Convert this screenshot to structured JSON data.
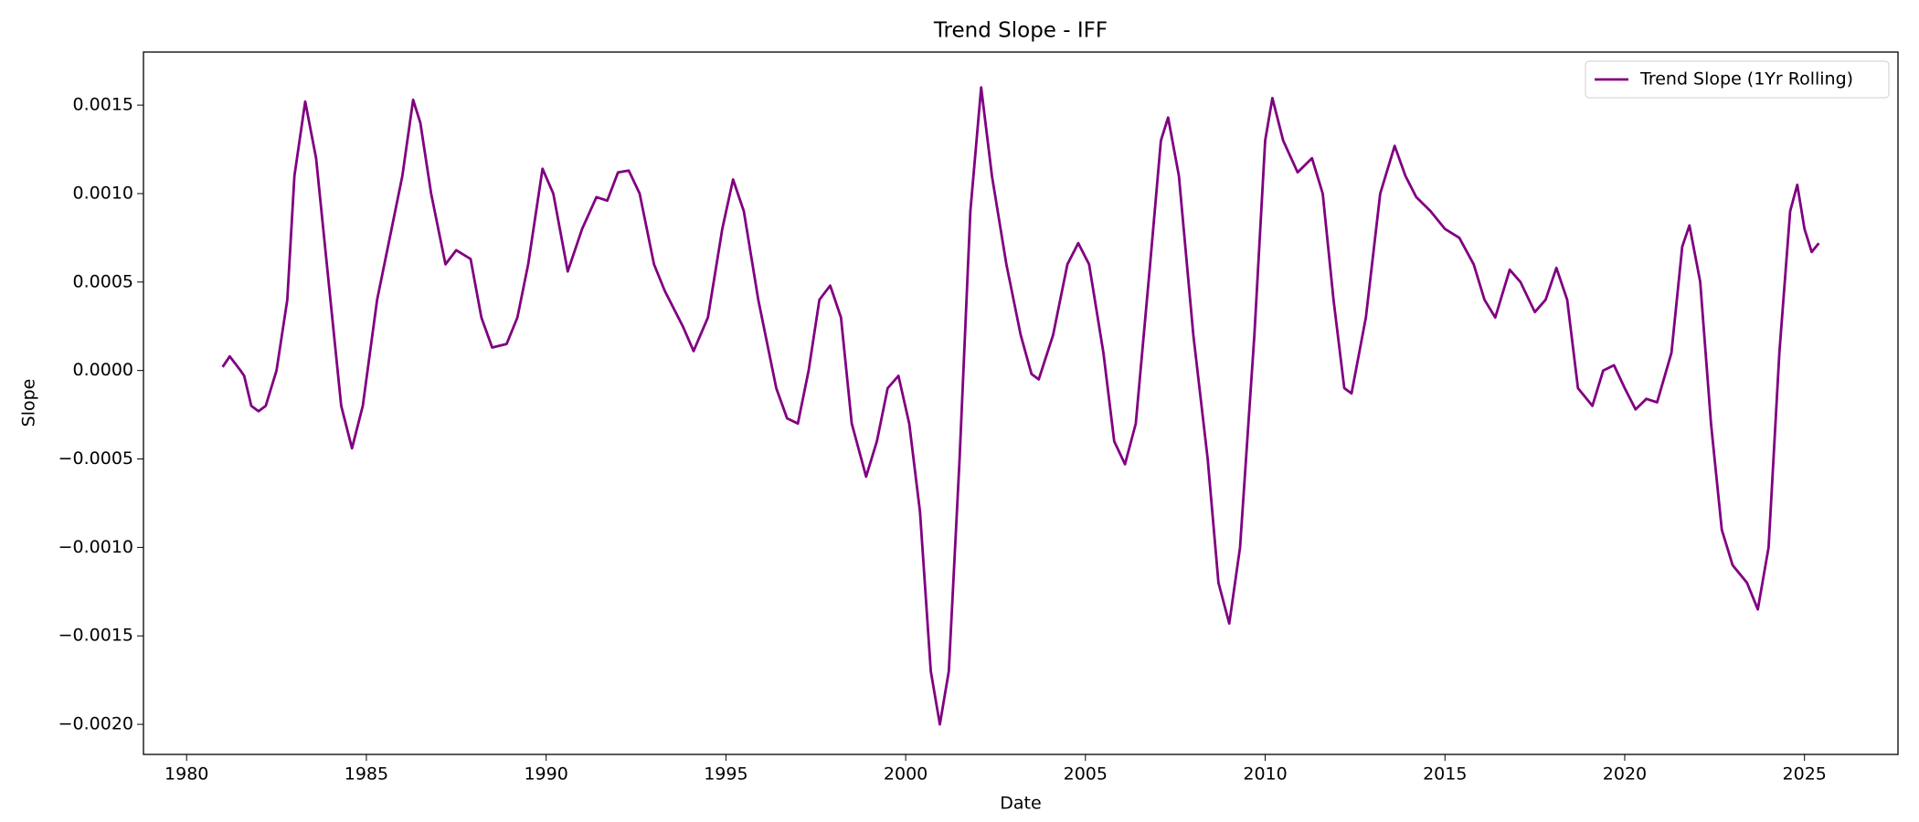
{
  "chart_data": {
    "type": "line",
    "title": "Trend Slope - IFF",
    "xlabel": "Date",
    "ylabel": "Slope",
    "x": [
      1981.0,
      1981.2,
      1981.5,
      1981.6,
      1981.8,
      1982.0,
      1982.2,
      1982.5,
      1982.8,
      1983.0,
      1983.3,
      1983.6,
      1984.0,
      1984.3,
      1984.6,
      1984.9,
      1985.3,
      1985.7,
      1986.0,
      1986.3,
      1986.5,
      1986.8,
      1987.2,
      1987.5,
      1987.9,
      1988.2,
      1988.5,
      1988.9,
      1989.2,
      1989.5,
      1989.9,
      1990.2,
      1990.6,
      1991.0,
      1991.4,
      1991.7,
      1992.0,
      1992.3,
      1992.6,
      1993.0,
      1993.3,
      1993.8,
      1994.1,
      1994.5,
      1994.9,
      1995.2,
      1995.5,
      1995.9,
      1996.4,
      1996.7,
      1997.0,
      1997.3,
      1997.6,
      1997.9,
      1998.2,
      1998.5,
      1998.9,
      1999.2,
      1999.5,
      1999.8,
      2000.1,
      2000.4,
      2000.7,
      2000.95,
      2001.2,
      2001.5,
      2001.8,
      2002.1,
      2002.4,
      2002.8,
      2003.2,
      2003.5,
      2003.7,
      2004.1,
      2004.5,
      2004.8,
      2005.1,
      2005.5,
      2005.8,
      2006.1,
      2006.4,
      2006.8,
      2007.1,
      2007.3,
      2007.6,
      2008.0,
      2008.4,
      2008.7,
      2009.0,
      2009.3,
      2009.7,
      2010.0,
      2010.2,
      2010.5,
      2010.9,
      2011.3,
      2011.6,
      2011.9,
      2012.2,
      2012.4,
      2012.8,
      2013.2,
      2013.6,
      2013.9,
      2014.2,
      2014.6,
      2015.0,
      2015.4,
      2015.8,
      2016.1,
      2016.4,
      2016.8,
      2017.1,
      2017.5,
      2017.8,
      2018.1,
      2018.4,
      2018.7,
      2019.1,
      2019.4,
      2019.7,
      2020.0,
      2020.3,
      2020.6,
      2020.9,
      2021.3,
      2021.6,
      2021.8,
      2022.1,
      2022.4,
      2022.7,
      2023.0,
      2023.4,
      2023.7,
      2024.0,
      2024.3,
      2024.6,
      2024.8,
      2025.0,
      2025.2,
      2025.4
    ],
    "series": [
      {
        "name": "Trend Slope (1Yr Rolling)",
        "color": "#800080",
        "values": [
          2e-05,
          8e-05,
          0.0,
          -3e-05,
          -0.0002,
          -0.00023,
          -0.0002,
          0.0,
          0.0004,
          0.0011,
          0.00152,
          0.0012,
          0.0004,
          -0.0002,
          -0.00044,
          -0.0002,
          0.0004,
          0.0008,
          0.0011,
          0.00153,
          0.0014,
          0.001,
          0.0006,
          0.00068,
          0.00063,
          0.0003,
          0.00013,
          0.00015,
          0.0003,
          0.0006,
          0.00114,
          0.001,
          0.00056,
          0.0008,
          0.00098,
          0.00096,
          0.00112,
          0.00113,
          0.001,
          0.0006,
          0.00045,
          0.00025,
          0.00011,
          0.0003,
          0.0008,
          0.00108,
          0.0009,
          0.0004,
          -0.0001,
          -0.00027,
          -0.0003,
          0.0,
          0.0004,
          0.00048,
          0.0003,
          -0.0003,
          -0.0006,
          -0.0004,
          -0.0001,
          -3e-05,
          -0.0003,
          -0.0008,
          -0.0017,
          -0.002,
          -0.0017,
          -0.0005,
          0.0009,
          0.0016,
          0.0011,
          0.0006,
          0.0002,
          -2e-05,
          -5e-05,
          0.0002,
          0.0006,
          0.00072,
          0.0006,
          0.0001,
          -0.0004,
          -0.00053,
          -0.0003,
          0.0006,
          0.0013,
          0.00143,
          0.0011,
          0.0002,
          -0.0005,
          -0.0012,
          -0.00143,
          -0.001,
          0.0002,
          0.0013,
          0.00154,
          0.0013,
          0.00112,
          0.0012,
          0.001,
          0.0004,
          -0.0001,
          -0.00013,
          0.0003,
          0.001,
          0.00127,
          0.0011,
          0.00098,
          0.0009,
          0.0008,
          0.00075,
          0.0006,
          0.0004,
          0.0003,
          0.00057,
          0.0005,
          0.00033,
          0.0004,
          0.00058,
          0.0004,
          -0.0001,
          -0.0002,
          0.0,
          3e-05,
          -0.0001,
          -0.00022,
          -0.00016,
          -0.00018,
          0.0001,
          0.0007,
          0.00082,
          0.0005,
          -0.0003,
          -0.0009,
          -0.0011,
          -0.0012,
          -0.00135,
          -0.001,
          0.0001,
          0.0009,
          0.00105,
          0.0008,
          0.00067,
          0.00072
        ]
      }
    ],
    "xlim": [
      1978.8,
      2027.6
    ],
    "xticks": [
      1980,
      1985,
      1990,
      1995,
      2000,
      2005,
      2010,
      2015,
      2020,
      2025
    ],
    "ylim": [
      -0.00217,
      0.0018
    ],
    "yticks": [
      {
        "value": -0.002,
        "label": "−0.0020"
      },
      {
        "value": -0.0015,
        "label": "−0.0015"
      },
      {
        "value": -0.001,
        "label": "−0.0010"
      },
      {
        "value": -0.0005,
        "label": "−0.0005"
      },
      {
        "value": 0,
        "label": "0.0000"
      },
      {
        "value": 0.0005,
        "label": "0.0005"
      },
      {
        "value": 0.001,
        "label": "0.0010"
      },
      {
        "value": 0.0015,
        "label": "0.0015"
      }
    ],
    "grid": false,
    "legend": "upper right"
  }
}
